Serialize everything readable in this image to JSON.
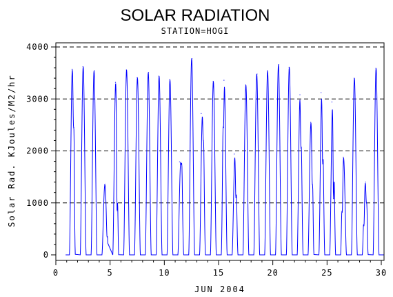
{
  "chart_data": {
    "type": "line",
    "title": "SOLAR RADIATION",
    "subtitle": "STATION=HOGI",
    "xlabel": "JUN 2004",
    "ylabel": "Solar Rad. KJoules/M2/hr",
    "xlim": [
      0,
      30
    ],
    "ylim": [
      0,
      4000
    ],
    "x_ticks": [
      0,
      5,
      10,
      15,
      20,
      25,
      30
    ],
    "y_ticks": [
      0,
      1000,
      2000,
      3000,
      4000
    ],
    "grid": "horizontal dashed",
    "series": [
      {
        "color": "#0000ff",
        "daily_peaks": [
          {
            "day": 1,
            "peaks": [
              [
                1.5,
                3570
              ],
              [
                1.65,
                2450
              ]
            ]
          },
          {
            "day": 2,
            "peaks": [
              [
                2.5,
                3620
              ]
            ]
          },
          {
            "day": 3,
            "peaks": [
              [
                3.55,
                3540
              ]
            ]
          },
          {
            "day": 4,
            "peaks": [
              [
                4.5,
                1350
              ],
              [
                4.75,
                350
              ]
            ]
          },
          {
            "day": 5,
            "peaks": [
              [
                5.5,
                3320
              ],
              [
                5.65,
                850
              ]
            ]
          },
          {
            "day": 6,
            "peaks": [
              [
                6.5,
                3560
              ]
            ]
          },
          {
            "day": 7,
            "peaks": [
              [
                7.5,
                3410
              ]
            ]
          },
          {
            "day": 8,
            "peaks": [
              [
                8.55,
                3510
              ]
            ]
          },
          {
            "day": 9,
            "peaks": [
              [
                9.5,
                3440
              ]
            ]
          },
          {
            "day": 10,
            "peaks": [
              [
                10.5,
                3370
              ]
            ]
          },
          {
            "day": 11,
            "peaks": [
              [
                11.4,
                1790
              ],
              [
                11.6,
                1760
              ]
            ]
          },
          {
            "day": 12,
            "peaks": [
              [
                12.55,
                3780
              ]
            ]
          },
          {
            "day": 13,
            "peaks": [
              [
                13.4,
                2720
              ],
              [
                13.6,
                2200
              ]
            ]
          },
          {
            "day": 14,
            "peaks": [
              [
                14.5,
                3340
              ]
            ]
          },
          {
            "day": 15,
            "peaks": [
              [
                15.5,
                3360
              ],
              [
                15.45,
                2450
              ]
            ]
          },
          {
            "day": 16,
            "peaks": [
              [
                16.45,
                1940
              ],
              [
                16.6,
                1100
              ]
            ]
          },
          {
            "day": 17,
            "peaks": [
              [
                17.5,
                3270
              ]
            ]
          },
          {
            "day": 18,
            "peaks": [
              [
                18.55,
                3480
              ]
            ]
          },
          {
            "day": 19,
            "peaks": [
              [
                19.5,
                3540
              ]
            ]
          },
          {
            "day": 20,
            "peaks": [
              [
                20.55,
                3660
              ]
            ]
          },
          {
            "day": 21,
            "peaks": [
              [
                21.5,
                3610
              ]
            ]
          },
          {
            "day": 22,
            "peaks": [
              [
                22.5,
                3080
              ],
              [
                22.6,
                2050
              ]
            ]
          },
          {
            "day": 23,
            "peaks": [
              [
                23.5,
                2550
              ],
              [
                23.65,
                1350
              ]
            ]
          },
          {
            "day": 24,
            "peaks": [
              [
                24.45,
                3120
              ],
              [
                24.6,
                1750
              ]
            ]
          },
          {
            "day": 25,
            "peaks": [
              [
                25.45,
                2940
              ],
              [
                25.6,
                1080
              ]
            ]
          },
          {
            "day": 26,
            "peaks": [
              [
                26.5,
                1880
              ],
              [
                26.4,
                820
              ]
            ]
          },
          {
            "day": 27,
            "peaks": [
              [
                27.5,
                3400
              ]
            ]
          },
          {
            "day": 28,
            "peaks": [
              [
                28.4,
                560
              ],
              [
                28.55,
                1400
              ],
              [
                28.65,
                1000
              ]
            ]
          },
          {
            "day": 29,
            "peaks": [
              [
                29.5,
                3590
              ]
            ]
          }
        ]
      }
    ]
  }
}
